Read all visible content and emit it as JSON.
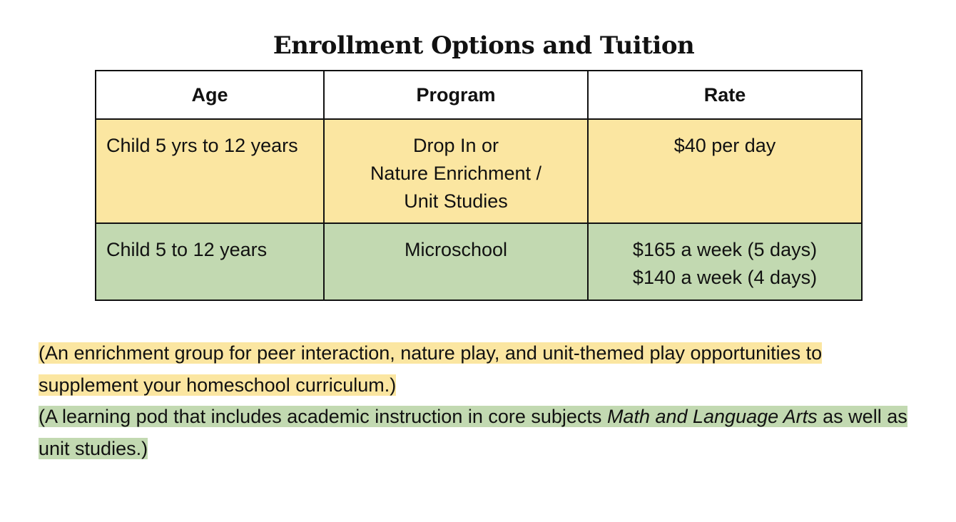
{
  "title": "Enrollment Options and Tuition",
  "table": {
    "headers": [
      "Age",
      "Program",
      "Rate"
    ],
    "rows": [
      {
        "age": "Child 5 yrs to 12 years",
        "program": [
          "Drop In or",
          "Nature Enrichment /",
          "Unit Studies"
        ],
        "rate": [
          "$40 per day"
        ],
        "color": "#fbe6a1"
      },
      {
        "age": "Child 5 to 12 years",
        "program": [
          "Microschool"
        ],
        "rate": [
          "$165 a week (5 days)",
          "$140 a week (4 days)"
        ],
        "color": "#c2d9b1"
      }
    ]
  },
  "notes": {
    "enrichment": "(An enrichment group for peer interaction, nature play, and unit-themed play opportunities to supplement your homeschool curriculum.)",
    "pod_before": "(A learning pod that includes academic instruction in core subjects ",
    "pod_subjects": "Math and Language Arts",
    "pod_after": " as well as unit studies.)"
  },
  "colors": {
    "yellow_highlight": "#fbe6a1",
    "green_highlight": "#c2d9b1"
  }
}
